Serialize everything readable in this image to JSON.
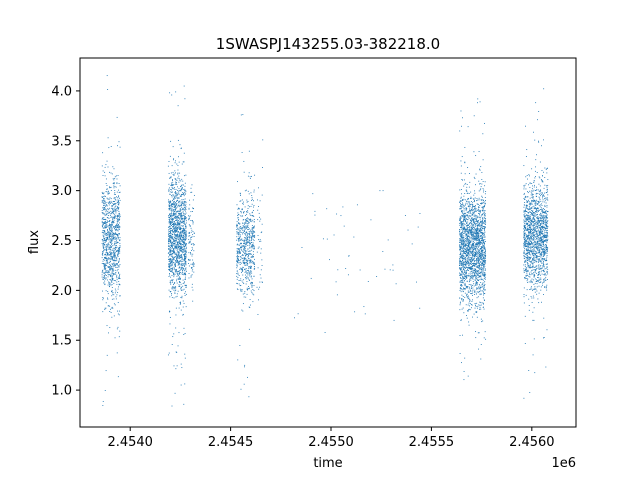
{
  "chart_data": {
    "type": "scatter",
    "title": "1SWASPJ143255.03-382218.0",
    "xlabel": "time",
    "ylabel": "flux",
    "x_offset_label": "1e6",
    "xlim": [
      2.45375,
      2.45622
    ],
    "ylim": [
      0.63,
      4.33
    ],
    "x_ticks": [
      2.454,
      2.4545,
      2.455,
      2.4555,
      2.456
    ],
    "x_tick_labels": [
      "2.4540",
      "2.4545",
      "2.4550",
      "2.4555",
      "2.4560"
    ],
    "y_ticks": [
      1.0,
      1.5,
      2.0,
      2.5,
      3.0,
      3.5,
      4.0
    ],
    "y_tick_labels": [
      "1.0",
      "1.5",
      "2.0",
      "2.5",
      "3.0",
      "3.5",
      "4.0"
    ],
    "grid": false,
    "marker_color": "#1f77b4",
    "marker_size": "tiny",
    "series": [
      {
        "observing_seasons": [
          {
            "x_start": 2.45386,
            "x_end": 2.45395,
            "flux_center": 2.5,
            "flux_spread": 0.3,
            "points": 1000,
            "flux_min": 0.83,
            "flux_max": 4.17
          },
          {
            "x_start": 2.45419,
            "x_end": 2.45428,
            "flux_center": 2.55,
            "flux_spread": 0.3,
            "points": 1400,
            "flux_min": 0.8,
            "flux_max": 4.05
          },
          {
            "x_start": 2.45429,
            "x_end": 2.45432,
            "flux_center": 2.5,
            "flux_spread": 0.28,
            "points": 100,
            "flux_min": 1.5,
            "flux_max": 3.2
          },
          {
            "x_start": 2.45453,
            "x_end": 2.45462,
            "flux_center": 2.45,
            "flux_spread": 0.25,
            "points": 650,
            "flux_min": 0.9,
            "flux_max": 4.07
          },
          {
            "x_start": 2.45463,
            "x_end": 2.45466,
            "flux_center": 2.45,
            "flux_spread": 0.3,
            "points": 40,
            "flux_min": 1.65,
            "flux_max": 3.6
          },
          {
            "x_start": 2.4548,
            "x_end": 2.45545,
            "flux_center": 2.35,
            "flux_spread": 0.35,
            "points": 50,
            "flux_min": 1.55,
            "flux_max": 3.0
          },
          {
            "x_start": 2.45564,
            "x_end": 2.45577,
            "flux_center": 2.45,
            "flux_spread": 0.28,
            "points": 2000,
            "flux_min": 1.0,
            "flux_max": 3.95
          },
          {
            "x_start": 2.45596,
            "x_end": 2.45608,
            "flux_center": 2.55,
            "flux_spread": 0.26,
            "points": 1500,
            "flux_min": 0.9,
            "flux_max": 4.03
          }
        ]
      }
    ]
  }
}
